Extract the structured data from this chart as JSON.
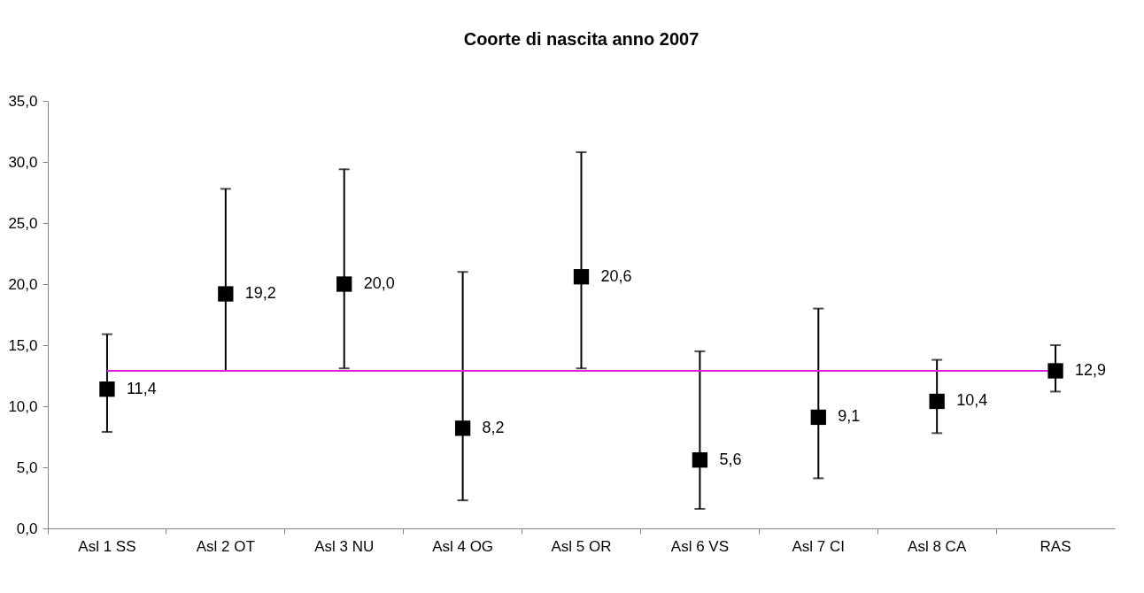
{
  "chart_data": {
    "type": "scatter",
    "title": "Coorte di nascita anno 2007",
    "categories": [
      "Asl 1 SS",
      "Asl 2 OT",
      "Asl 3 NU",
      "Asl 4 OG",
      "Asl 5 OR",
      "Asl 6 VS",
      "Asl 7 CI",
      "Asl 8 CA",
      "RAS"
    ],
    "values": [
      11.4,
      19.2,
      20.0,
      8.2,
      20.6,
      5.6,
      9.1,
      10.4,
      12.9
    ],
    "errors": [
      [
        7.9,
        15.9
      ],
      [
        12.9,
        27.8
      ],
      [
        13.1,
        29.4
      ],
      [
        2.3,
        21.0
      ],
      [
        13.1,
        30.8
      ],
      [
        1.6,
        14.5
      ],
      [
        4.1,
        18.0
      ],
      [
        7.8,
        13.8
      ],
      [
        11.2,
        15.0
      ]
    ],
    "value_labels": [
      "11,4",
      "19,2",
      "20,0",
      "8,2",
      "20,6",
      "5,6",
      "9,1",
      "10,4",
      "12,9"
    ],
    "color": "#000000",
    "marker": "square",
    "grid": false,
    "ylim": [
      0,
      35
    ],
    "yticks": [
      {
        "value": 0,
        "label": "0,0"
      },
      {
        "value": 5,
        "label": "5,0"
      },
      {
        "value": 10,
        "label": "10,0"
      },
      {
        "value": 15,
        "label": "15,0"
      },
      {
        "value": 20,
        "label": "20,0"
      },
      {
        "value": 25,
        "label": "25,0"
      },
      {
        "value": 30,
        "label": "30,0"
      },
      {
        "value": 35,
        "label": "35,0"
      }
    ],
    "ref_lines": [
      {
        "axis": "y",
        "value": 12.9,
        "color": "#e01ee0"
      }
    ]
  }
}
